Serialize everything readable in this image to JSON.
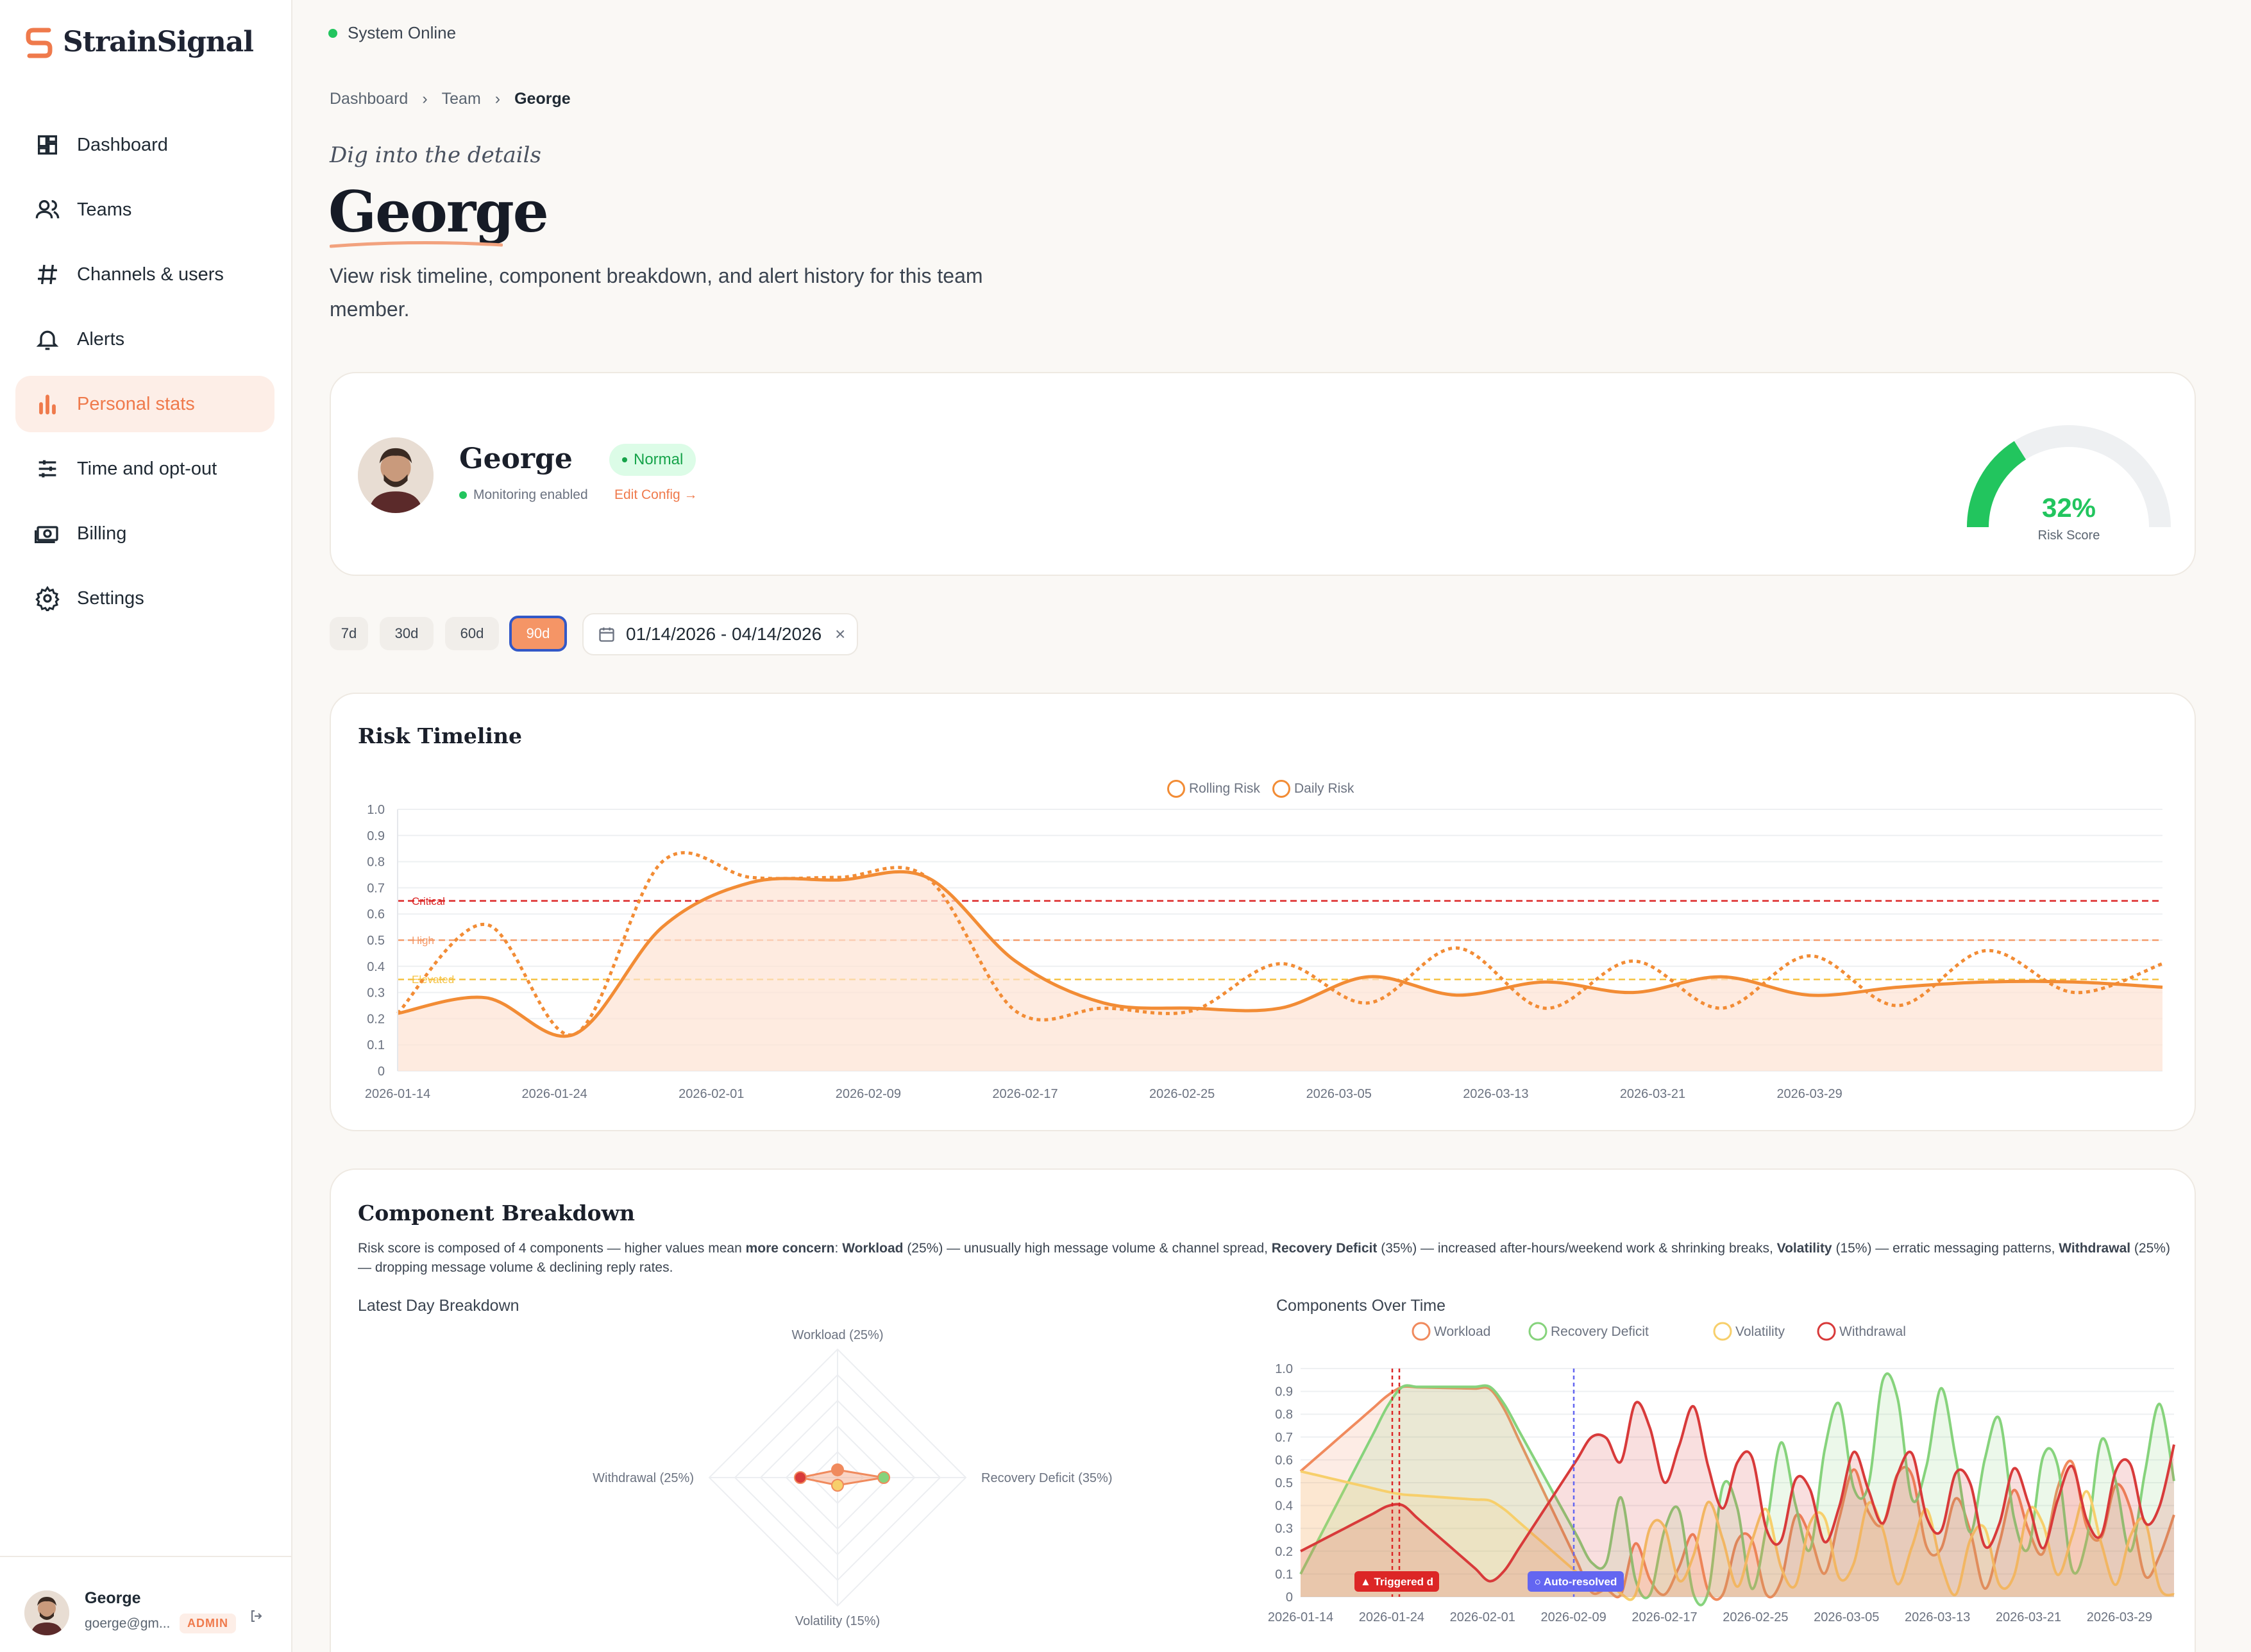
{
  "app": {
    "name": "StrainSignal",
    "status": "System Online"
  },
  "sidebar": {
    "items": [
      {
        "label": "Dashboard",
        "icon": "grid-icon"
      },
      {
        "label": "Teams",
        "icon": "users-icon"
      },
      {
        "label": "Channels & users",
        "icon": "hash-icon"
      },
      {
        "label": "Alerts",
        "icon": "bell-icon"
      },
      {
        "label": "Personal stats",
        "icon": "bar-chart-icon",
        "active": true
      },
      {
        "label": "Time and opt-out",
        "icon": "sliders-icon"
      },
      {
        "label": "Billing",
        "icon": "money-icon"
      },
      {
        "label": "Settings",
        "icon": "gear-icon"
      }
    ]
  },
  "user": {
    "name": "George",
    "email": "goerge@gm...",
    "role": "ADMIN"
  },
  "breadcrumb": [
    "Dashboard",
    "Team",
    "George"
  ],
  "header": {
    "kicker": "Dig into the details",
    "title": "George",
    "description": "View risk timeline, component breakdown, and alert history for this team member."
  },
  "profile": {
    "name": "George",
    "status_badge": "Normal",
    "monitoring": "Monitoring enabled",
    "edit_link": "Edit Config →",
    "risk_score": "32%",
    "risk_label": "Risk Score",
    "risk_value": 0.32
  },
  "filters": {
    "ranges": [
      "7d",
      "30d",
      "60d",
      "90d"
    ],
    "active": "90d",
    "date_range": "01/14/2026 - 04/14/2026"
  },
  "colors": {
    "accent": "#ef7a4c",
    "rolling": "#f28c35",
    "critical": "#dc2626",
    "high": "#f59b6a",
    "elevated": "#f5c344",
    "gauge": "#22c55e",
    "workload": "#f08a5d",
    "recovery": "#86d37c",
    "volatility": "#f7cf6b",
    "withdrawal": "#d83a3a"
  },
  "risk_timeline": {
    "title": "Risk Timeline",
    "legend": [
      "Rolling Risk",
      "Daily Risk"
    ],
    "thresholds": [
      {
        "label": "Critical",
        "value": 0.65
      },
      {
        "label": "High",
        "value": 0.5
      },
      {
        "label": "Elevated",
        "value": 0.35
      }
    ],
    "y_ticks": [
      "1.0",
      "0.9",
      "0.8",
      "0.7",
      "0.6",
      "0.5",
      "0.4",
      "0.3",
      "0.2",
      "0.1",
      "0"
    ],
    "x_ticks": [
      "2026-01-14",
      "2026-01-24",
      "2026-02-01",
      "2026-02-09",
      "2026-02-17",
      "2026-02-25",
      "2026-03-05",
      "2026-03-13",
      "2026-03-21",
      "2026-03-29"
    ]
  },
  "components": {
    "title": "Component Breakdown",
    "desc_parts": [
      "Risk score is composed of 4 components — higher values mean ",
      "more concern",
      ": ",
      "Workload",
      " (25%) — unusually high message volume & channel spread, ",
      "Recovery Deficit",
      " (35%) — increased after-hours/weekend work & shrinking breaks, ",
      "Volatility",
      " (15%) — erratic messaging patterns, ",
      "Withdrawal",
      " (25%) — dropping message volume & declining reply rates."
    ],
    "latest_title": "Latest Day Breakdown",
    "over_time_title": "Components Over Time",
    "radar_labels": [
      "Workload (25%)",
      "Recovery Deficit (35%)",
      "Volatility (15%)",
      "Withdrawal (25%)"
    ],
    "legend": [
      "Workload",
      "Recovery Deficit",
      "Volatility",
      "Withdrawal"
    ],
    "markers": [
      "▲ Triggered d",
      "○ Auto-resolved"
    ],
    "y_ticks": [
      "1.0",
      "0.9",
      "0.8",
      "0.7",
      "0.6",
      "0.5",
      "0.4",
      "0.3",
      "0.2",
      "0.1",
      "0"
    ],
    "x_ticks": [
      "2026-01-14",
      "2026-01-24",
      "2026-02-01",
      "2026-02-09",
      "2026-02-17",
      "2026-02-25",
      "2026-03-05",
      "2026-03-13",
      "2026-03-21",
      "2026-03-29"
    ],
    "bottom_legend": [
      "Workload (25%)",
      "Recovery Deficit (35%)",
      "Volatility (15%)",
      "Withdrawal (25%)"
    ]
  },
  "chart_data": [
    {
      "type": "line",
      "title": "Risk Timeline",
      "ylim": [
        0,
        1
      ],
      "x": [
        "2026-01-14",
        "2026-01-18",
        "2026-01-22",
        "2026-01-26",
        "2026-01-30",
        "2026-02-03",
        "2026-02-07",
        "2026-02-11",
        "2026-02-15",
        "2026-02-19",
        "2026-02-23",
        "2026-02-27",
        "2026-03-03",
        "2026-03-07",
        "2026-03-11",
        "2026-03-15",
        "2026-03-19",
        "2026-03-23",
        "2026-03-27",
        "2026-03-31",
        "2026-04-04"
      ],
      "series": [
        {
          "name": "Rolling Risk",
          "values": [
            0.22,
            0.28,
            0.14,
            0.55,
            0.72,
            0.73,
            0.74,
            0.42,
            0.26,
            0.24,
            0.24,
            0.36,
            0.29,
            0.34,
            0.3,
            0.36,
            0.29,
            0.32,
            0.34,
            0.34,
            0.32
          ]
        },
        {
          "name": "Daily Risk",
          "values": [
            0.22,
            0.56,
            0.14,
            0.8,
            0.74,
            0.74,
            0.74,
            0.23,
            0.24,
            0.23,
            0.41,
            0.26,
            0.47,
            0.24,
            0.42,
            0.24,
            0.44,
            0.25,
            0.46,
            0.3,
            0.41
          ]
        }
      ]
    },
    {
      "type": "radar",
      "title": "Latest Day Breakdown",
      "categories": [
        "Workload",
        "Recovery Deficit",
        "Volatility",
        "Withdrawal"
      ],
      "values": [
        0.06,
        0.36,
        0.06,
        0.29
      ]
    },
    {
      "type": "line",
      "title": "Components Over Time",
      "ylim": [
        0,
        1
      ],
      "x": [
        "2026-01-14",
        "2026-01-24",
        "2026-02-01",
        "2026-02-09",
        "2026-02-17",
        "2026-02-25",
        "2026-03-05",
        "2026-03-13",
        "2026-03-21",
        "2026-03-29"
      ],
      "series": [
        {
          "name": "Workload",
          "values": [
            0.55,
            0.92,
            0.91,
            0.02,
            0.1,
            0.15,
            0.48,
            0.2,
            0.45,
            0.18
          ]
        },
        {
          "name": "Recovery Deficit",
          "values": [
            0.1,
            0.92,
            0.92,
            0.15,
            0.15,
            0.4,
            0.75,
            0.55,
            0.35,
            0.6
          ]
        },
        {
          "name": "Volatility",
          "values": [
            0.55,
            0.45,
            0.42,
            0.05,
            0.25,
            0.2,
            0.25,
            0.15,
            0.3,
            0.12
          ]
        },
        {
          "name": "Withdrawal",
          "values": [
            0.2,
            0.42,
            0.05,
            0.7,
            0.67,
            0.35,
            0.5,
            0.38,
            0.4,
            0.5
          ]
        }
      ]
    }
  ]
}
